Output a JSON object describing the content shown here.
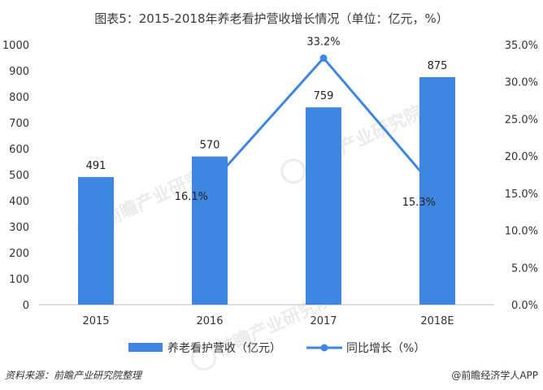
{
  "chart_data": {
    "type": "bar+line",
    "title": "图表5：2015-2018年养老看护营收增长情况（单位：亿元，%）",
    "categories": [
      "2015",
      "2016",
      "2017",
      "2018E"
    ],
    "series": [
      {
        "name": "养老看护营收（亿元）",
        "type": "bar",
        "axis": "left",
        "values": [
          491,
          570,
          759,
          875
        ],
        "labels": [
          "491",
          "570",
          "759",
          "875"
        ],
        "color": "#3e86e0"
      },
      {
        "name": "同比增长（%）",
        "type": "line",
        "axis": "right",
        "x": [
          "2016",
          "2017",
          "2018E"
        ],
        "values": [
          16.1,
          33.2,
          15.3
        ],
        "labels": [
          "16.1%",
          "33.2%",
          "15.3%"
        ],
        "color": "#3e86e0"
      }
    ],
    "y_left": {
      "min": 0,
      "max": 1000,
      "ticks": [
        "0",
        "100",
        "200",
        "300",
        "400",
        "500",
        "600",
        "700",
        "800",
        "900",
        "1000"
      ]
    },
    "y_right": {
      "min": 0,
      "max": 35,
      "ticks": [
        "0.0%",
        "5.0%",
        "10.0%",
        "15.0%",
        "20.0%",
        "25.0%",
        "30.0%",
        "35.0%"
      ]
    },
    "legend": {
      "placement": "bottom",
      "items": [
        "养老看护营收（亿元）",
        "同比增长（%）"
      ]
    },
    "grid": false
  },
  "footer": {
    "source": "资料来源：前瞻产业研究院整理",
    "brand": "@前瞻经济学人APP"
  },
  "watermark": "前瞻产业研究院"
}
